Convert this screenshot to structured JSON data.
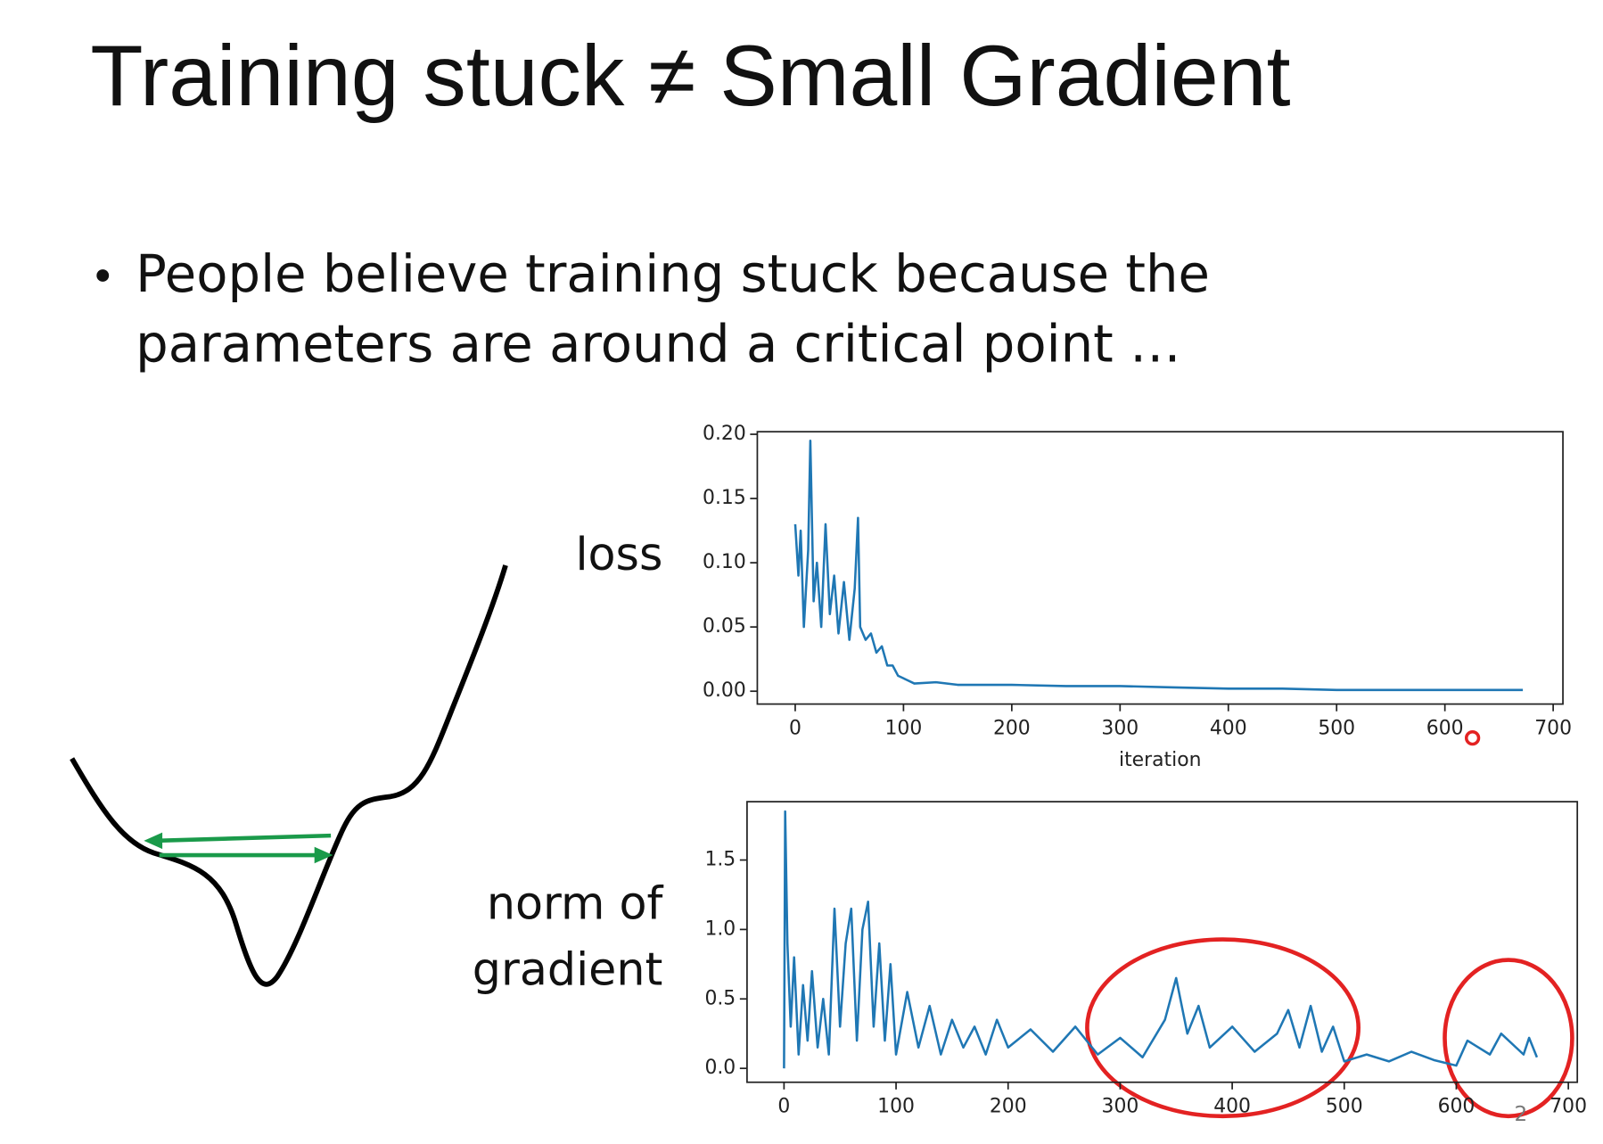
{
  "title": "Training stuck ≠ Small Gradient",
  "bullet": {
    "lines": [
      "People believe training stuck because the",
      "parameters are around a critical point …"
    ]
  },
  "page_number": "2",
  "chart_data": [
    {
      "type": "line",
      "ylabel": [
        "loss"
      ],
      "xlabel": "iteration",
      "color": "#1f77b4",
      "x": [
        0,
        3,
        5,
        8,
        12,
        14,
        17,
        20,
        24,
        28,
        32,
        36,
        40,
        45,
        50,
        55,
        58,
        60,
        65,
        70,
        75,
        80,
        85,
        90,
        95,
        100,
        110,
        130,
        150,
        200,
        250,
        300,
        350,
        400,
        450,
        500,
        550,
        600,
        672
      ],
      "values": [
        0.13,
        0.09,
        0.125,
        0.05,
        0.11,
        0.195,
        0.07,
        0.1,
        0.05,
        0.13,
        0.06,
        0.09,
        0.045,
        0.085,
        0.04,
        0.08,
        0.135,
        0.05,
        0.04,
        0.045,
        0.03,
        0.035,
        0.02,
        0.02,
        0.012,
        0.01,
        0.006,
        0.007,
        0.005,
        0.005,
        0.004,
        0.004,
        0.003,
        0.002,
        0.002,
        0.001,
        0.001,
        0.001,
        0.001
      ],
      "xlim": [
        -35,
        709
      ],
      "ylim": [
        -0.01,
        0.202
      ],
      "xticks": [
        0,
        100,
        200,
        300,
        400,
        500,
        600,
        700
      ],
      "yticks": [
        {
          "value": 0,
          "label": "0.00"
        },
        {
          "value": 0.05,
          "label": "0.05"
        },
        {
          "value": 0.1,
          "label": "0.10"
        },
        {
          "value": 0.15,
          "label": "0.15"
        },
        {
          "value": 0.2,
          "label": "0.20"
        }
      ]
    },
    {
      "type": "line",
      "ylabel": [
        "norm of",
        "gradient"
      ],
      "color": "#1f77b4",
      "x": [
        0,
        1,
        3,
        6,
        9,
        13,
        17,
        21,
        25,
        30,
        35,
        40,
        45,
        50,
        55,
        60,
        65,
        70,
        75,
        80,
        85,
        90,
        95,
        100,
        110,
        120,
        130,
        140,
        150,
        160,
        170,
        180,
        190,
        200,
        220,
        240,
        260,
        280,
        300,
        320,
        340,
        350,
        360,
        370,
        380,
        400,
        420,
        440,
        450,
        460,
        470,
        480,
        490,
        500,
        520,
        540,
        560,
        580,
        600,
        610,
        630,
        640,
        660,
        665,
        672
      ],
      "values": [
        0.0,
        1.85,
        0.9,
        0.3,
        0.8,
        0.1,
        0.6,
        0.2,
        0.7,
        0.15,
        0.5,
        0.1,
        1.15,
        0.3,
        0.9,
        1.15,
        0.2,
        1.0,
        1.2,
        0.3,
        0.9,
        0.2,
        0.75,
        0.1,
        0.55,
        0.15,
        0.45,
        0.1,
        0.35,
        0.15,
        0.3,
        0.1,
        0.35,
        0.15,
        0.28,
        0.12,
        0.3,
        0.1,
        0.22,
        0.08,
        0.35,
        0.65,
        0.25,
        0.45,
        0.15,
        0.3,
        0.12,
        0.25,
        0.42,
        0.15,
        0.45,
        0.12,
        0.3,
        0.05,
        0.1,
        0.05,
        0.12,
        0.06,
        0.02,
        0.2,
        0.1,
        0.25,
        0.1,
        0.22,
        0.08
      ],
      "xlim": [
        -33,
        708
      ],
      "ylim": [
        -0.1,
        1.92
      ],
      "xticks": [
        0,
        100,
        200,
        300,
        400,
        500,
        600,
        700
      ],
      "yticks": [
        {
          "value": 0,
          "label": "0.0"
        },
        {
          "value": 0.5,
          "label": "0.5"
        },
        {
          "value": 1,
          "label": "1.0"
        },
        {
          "value": 1.5,
          "label": "1.5"
        }
      ]
    }
  ]
}
